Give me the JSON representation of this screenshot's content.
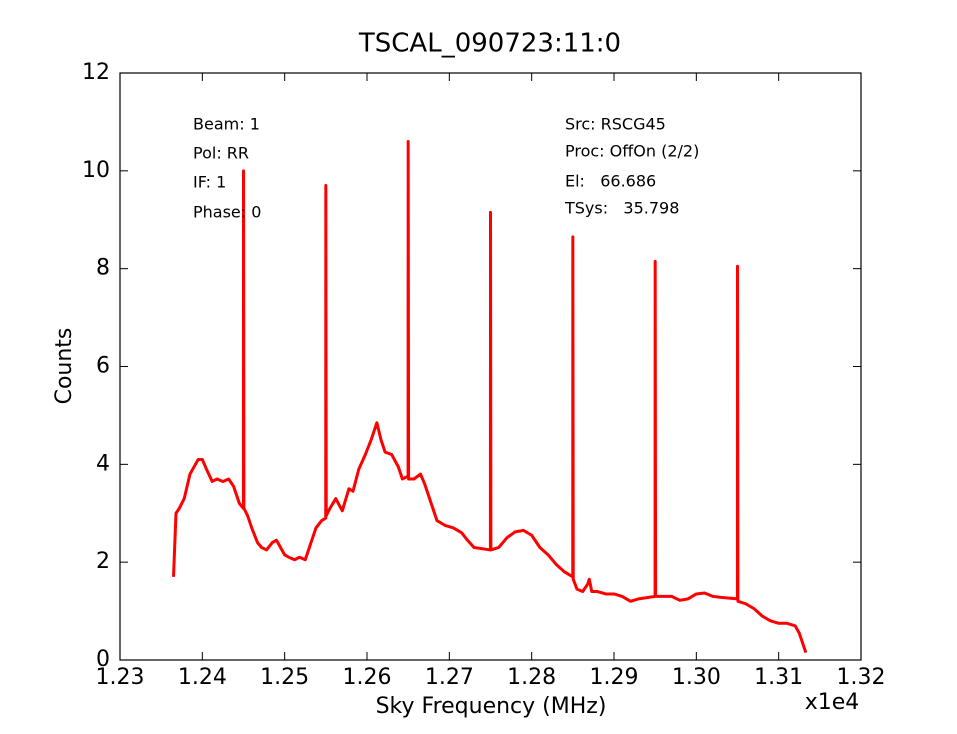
{
  "chart_data": {
    "type": "line",
    "title": "TSCAL_090723:11:0",
    "x_label": "Sky Frequency (MHz)",
    "y_label": "Counts",
    "x_offset_label": "x1e4",
    "annotations": [
      "Beam: 1",
      "Pol: RR",
      "IF: 1",
      "Phase: 0",
      "Src: RSCG45",
      "Proc: OffOn (2/2)",
      "El:   66.686",
      "TSys:   35.798"
    ],
    "color": "#ff0000",
    "xlim": [
      1.23,
      1.32
    ],
    "xticks": [
      1.23,
      1.24,
      1.25,
      1.26,
      1.27,
      1.28,
      1.29,
      {
        "value": 1.3,
        "label": "1.30"
      },
      1.31,
      1.32
    ],
    "ylim": [
      0,
      12
    ],
    "yticks": [
      0,
      2,
      4,
      6,
      8,
      10,
      12
    ],
    "grid": false,
    "x": [
      1.2365,
      1.2368,
      1.2372,
      1.2378,
      1.2385,
      1.2395,
      1.24,
      1.2405,
      1.2412,
      1.2418,
      1.2425,
      1.2432,
      1.2438,
      1.2445,
      1.24499,
      1.245,
      1.24505,
      1.2455,
      1.246,
      1.2467,
      1.2472,
      1.2478,
      1.2485,
      1.249,
      1.2495,
      1.25,
      1.2505,
      1.2512,
      1.2518,
      1.2525,
      1.253,
      1.2538,
      1.2545,
      1.25499,
      1.255,
      1.25505,
      1.2555,
      1.2562,
      1.257,
      1.2578,
      1.2583,
      1.259,
      1.2598,
      1.2605,
      1.2612,
      1.2617,
      1.2622,
      1.263,
      1.2638,
      1.2643,
      1.2649,
      1.26499,
      1.265,
      1.26505,
      1.2657,
      1.2665,
      1.267,
      1.2678,
      1.2685,
      1.2695,
      1.2705,
      1.2715,
      1.2722,
      1.273,
      1.27499,
      1.275,
      1.27505,
      1.276,
      1.277,
      1.278,
      1.279,
      1.28,
      1.281,
      1.282,
      1.283,
      1.284,
      1.28499,
      1.285,
      1.28505,
      1.2855,
      1.2862,
      1.2868,
      1.287,
      1.2873,
      1.288,
      1.289,
      1.29,
      1.291,
      1.292,
      1.293,
      1.29499,
      1.295,
      1.29505,
      1.296,
      1.297,
      1.298,
      1.299,
      1.3,
      1.301,
      1.302,
      1.303,
      1.30499,
      1.305,
      1.30505,
      1.306,
      1.307,
      1.308,
      1.309,
      1.31,
      1.311,
      1.312,
      1.3125,
      1.3133
    ],
    "values": [
      1.7,
      3.0,
      3.1,
      3.3,
      3.8,
      4.1,
      4.1,
      3.9,
      3.65,
      3.7,
      3.65,
      3.7,
      3.55,
      3.2,
      3.1,
      10.0,
      3.1,
      2.95,
      2.7,
      2.4,
      2.3,
      2.25,
      2.4,
      2.45,
      2.3,
      2.15,
      2.1,
      2.05,
      2.1,
      2.05,
      2.3,
      2.7,
      2.85,
      2.9,
      9.7,
      2.95,
      3.1,
      3.3,
      3.05,
      3.5,
      3.45,
      3.9,
      4.2,
      4.5,
      4.85,
      4.5,
      4.25,
      4.2,
      3.95,
      3.7,
      3.75,
      3.75,
      10.6,
      3.7,
      3.7,
      3.8,
      3.6,
      3.2,
      2.85,
      2.75,
      2.7,
      2.6,
      2.45,
      2.3,
      2.25,
      9.15,
      2.25,
      2.3,
      2.5,
      2.62,
      2.65,
      2.55,
      2.3,
      2.15,
      1.95,
      1.8,
      1.7,
      8.65,
      1.65,
      1.45,
      1.4,
      1.55,
      1.65,
      1.4,
      1.4,
      1.35,
      1.35,
      1.3,
      1.2,
      1.25,
      1.3,
      8.15,
      1.3,
      1.3,
      1.3,
      1.22,
      1.25,
      1.35,
      1.37,
      1.3,
      1.28,
      1.25,
      8.05,
      1.2,
      1.15,
      1.05,
      0.9,
      0.8,
      0.75,
      0.75,
      0.7,
      0.55,
      0.15
    ]
  }
}
